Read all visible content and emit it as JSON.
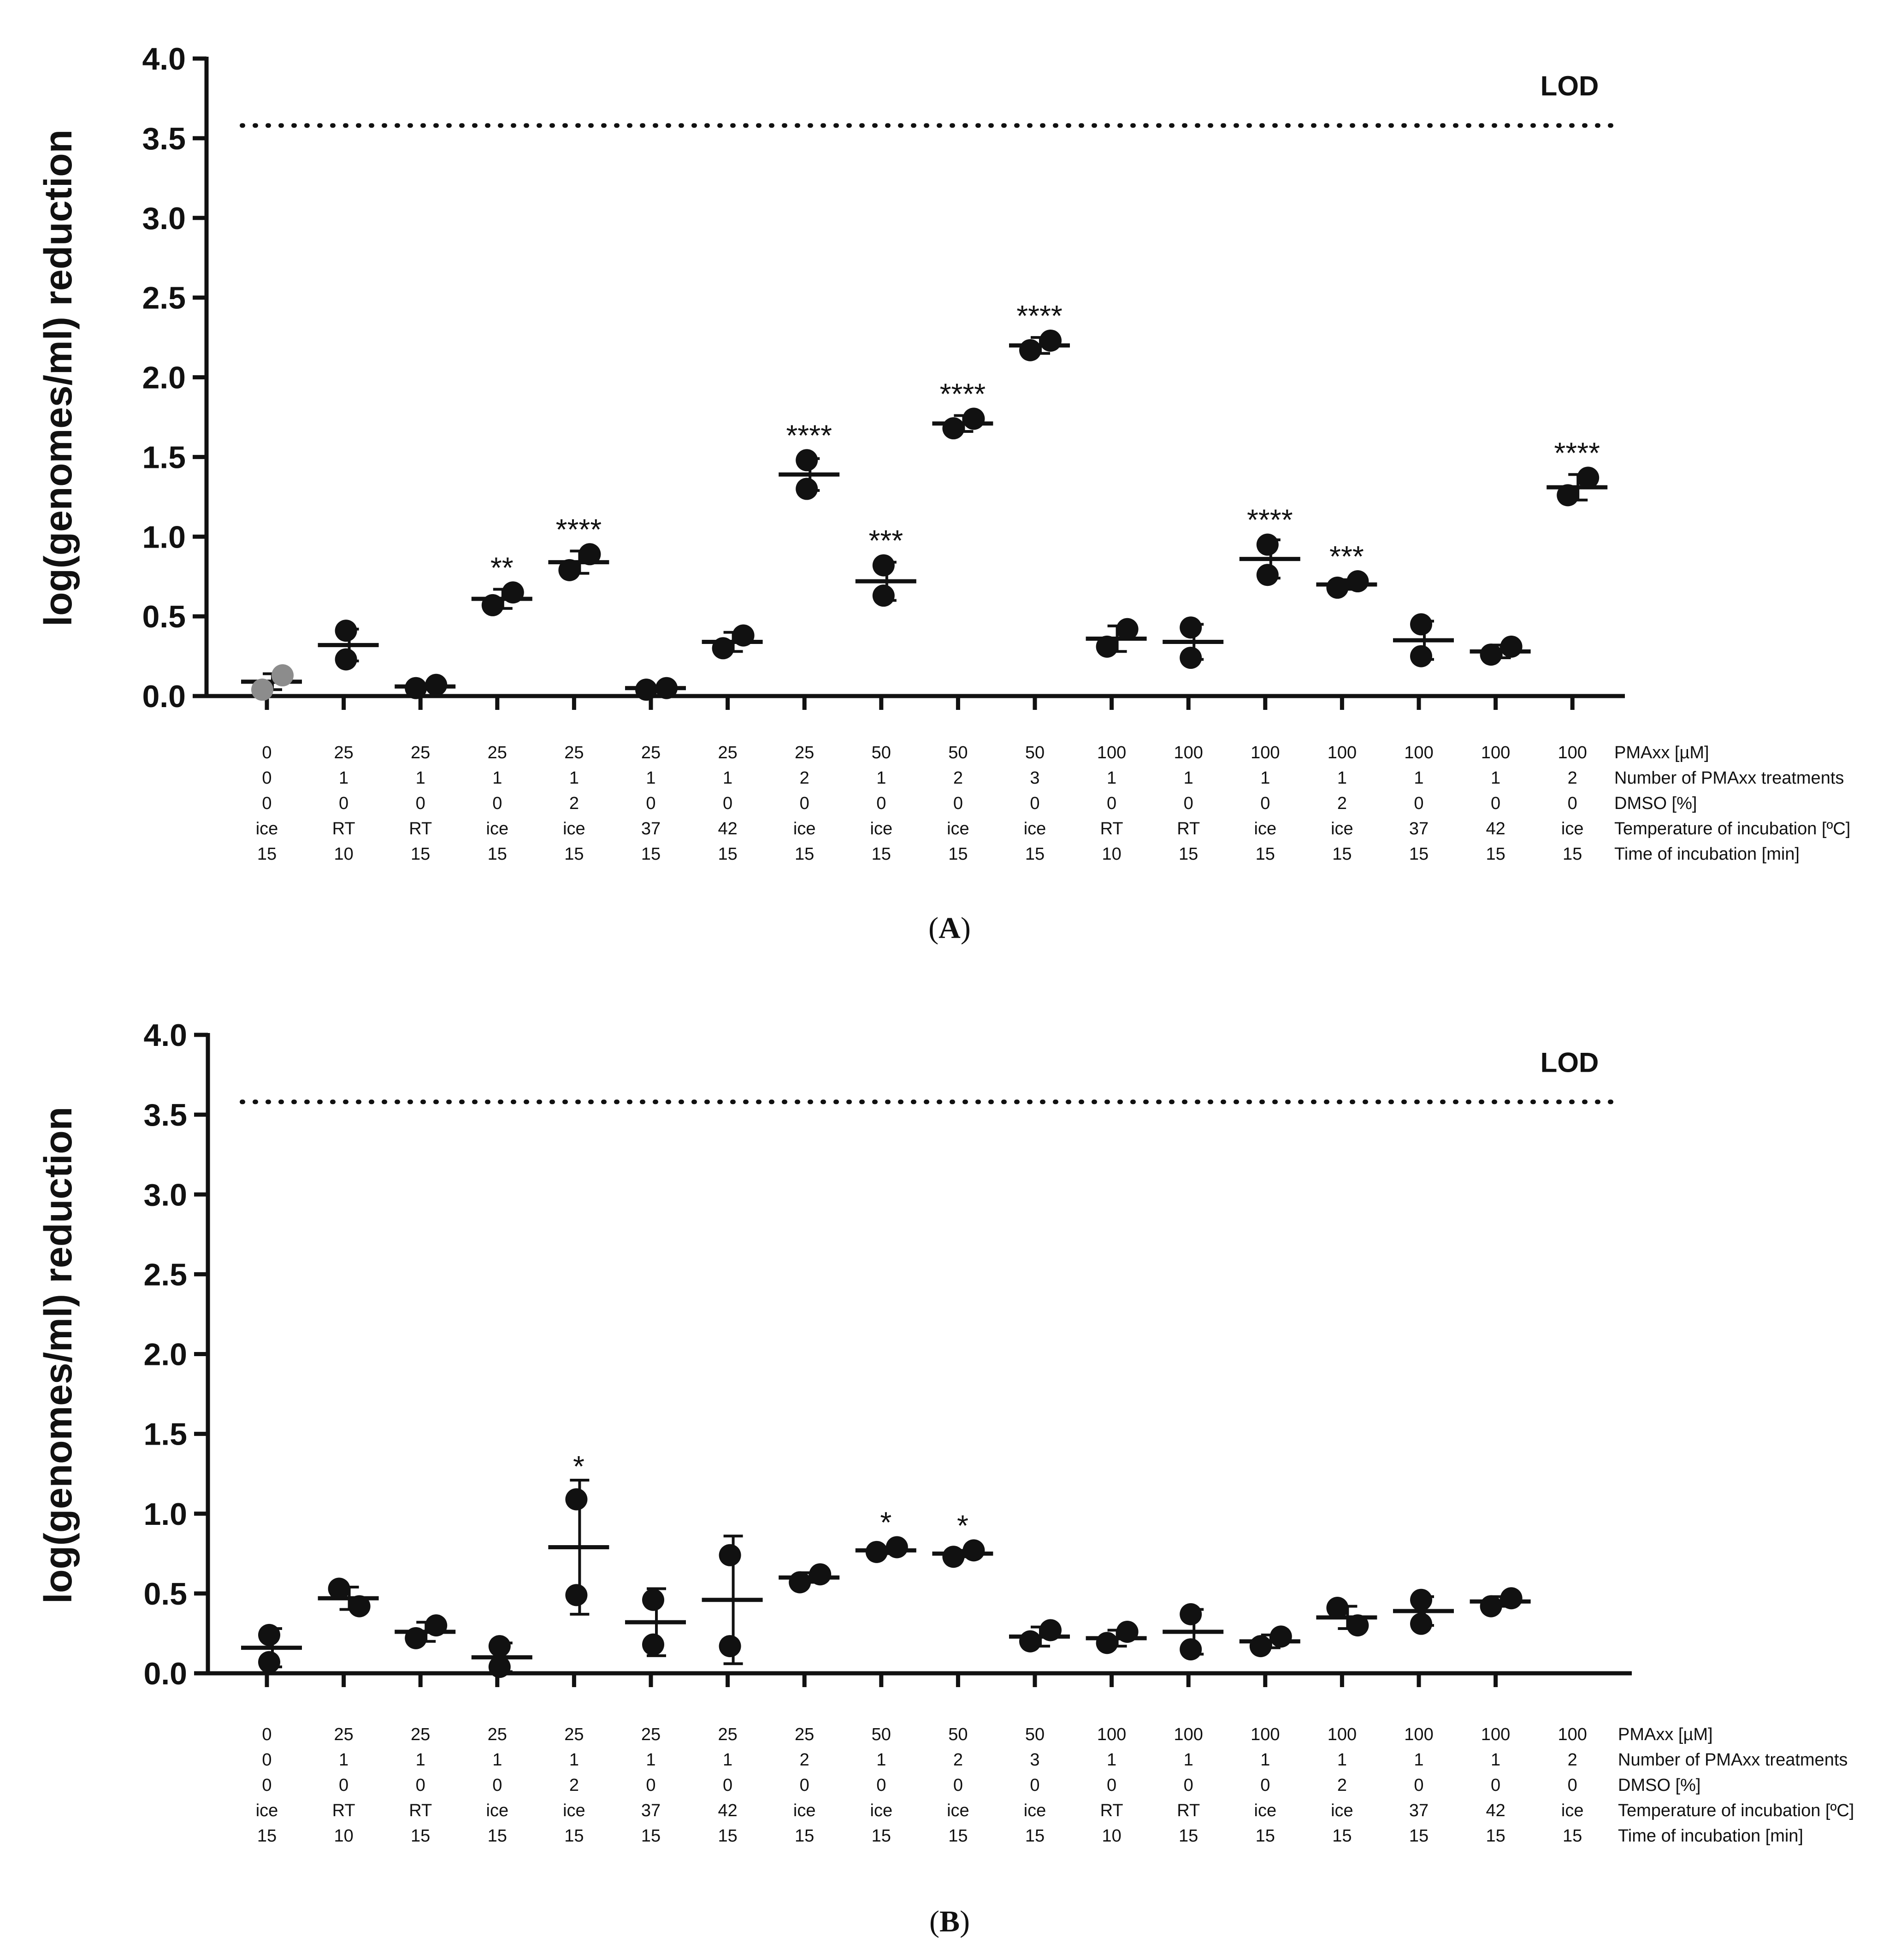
{
  "conditions": {
    "row_labels": [
      "PMAxx [µM]",
      "Number of PMAxx treatments",
      "DMSO [%]",
      "Temperature of incubation [ºC]",
      "Time of incubation [min]"
    ],
    "columns": [
      [
        "0",
        "0",
        "0",
        "ice",
        "15"
      ],
      [
        "25",
        "1",
        "0",
        "RT",
        "10"
      ],
      [
        "25",
        "1",
        "0",
        "RT",
        "15"
      ],
      [
        "25",
        "1",
        "0",
        "ice",
        "15"
      ],
      [
        "25",
        "1",
        "2",
        "ice",
        "15"
      ],
      [
        "25",
        "1",
        "0",
        "37",
        "15"
      ],
      [
        "25",
        "1",
        "0",
        "42",
        "15"
      ],
      [
        "25",
        "2",
        "0",
        "ice",
        "15"
      ],
      [
        "50",
        "1",
        "0",
        "ice",
        "15"
      ],
      [
        "50",
        "2",
        "0",
        "ice",
        "15"
      ],
      [
        "50",
        "3",
        "0",
        "ice",
        "15"
      ],
      [
        "100",
        "1",
        "0",
        "RT",
        "10"
      ],
      [
        "100",
        "1",
        "0",
        "RT",
        "15"
      ],
      [
        "100",
        "1",
        "0",
        "ice",
        "15"
      ],
      [
        "100",
        "1",
        "2",
        "ice",
        "15"
      ],
      [
        "100",
        "1",
        "0",
        "37",
        "15"
      ],
      [
        "100",
        "1",
        "0",
        "42",
        "15"
      ],
      [
        "100",
        "2",
        "0",
        "ice",
        "15"
      ]
    ]
  },
  "colors": {
    "points": "#111111",
    "control_points": "#8c8c8c",
    "axis": "#111111"
  },
  "chart_data": [
    {
      "type": "scatter",
      "panel_label": "A",
      "ylabel": "log(genomes/ml) reduction",
      "ylim": [
        0,
        4
      ],
      "yticks": [
        "0.0",
        "0.5",
        "1.0",
        "1.5",
        "2.0",
        "2.5",
        "3.0",
        "3.5",
        "4.0"
      ],
      "lod_value": 3.58,
      "lod_label": "LOD",
      "groups": [
        {
          "mean": 0.09,
          "sd": 0.05,
          "points": [
            0.04,
            0.13
          ],
          "marker": "control",
          "sig": ""
        },
        {
          "mean": 0.32,
          "sd": 0.1,
          "points": [
            0.41,
            0.23
          ],
          "sig": ""
        },
        {
          "mean": 0.06,
          "sd": 0.01,
          "points": [
            0.05,
            0.07
          ],
          "sig": ""
        },
        {
          "mean": 0.61,
          "sd": 0.06,
          "points": [
            0.57,
            0.65
          ],
          "sig": "**"
        },
        {
          "mean": 0.84,
          "sd": 0.07,
          "points": [
            0.79,
            0.89
          ],
          "sig": "****"
        },
        {
          "mean": 0.05,
          "sd": 0.01,
          "points": [
            0.04,
            0.05
          ],
          "sig": ""
        },
        {
          "mean": 0.34,
          "sd": 0.06,
          "points": [
            0.3,
            0.38
          ],
          "sig": ""
        },
        {
          "mean": 1.39,
          "sd": 0.1,
          "points": [
            1.48,
            1.3
          ],
          "sig": "****"
        },
        {
          "mean": 0.72,
          "sd": 0.12,
          "points": [
            0.82,
            0.63
          ],
          "sig": "***"
        },
        {
          "mean": 1.71,
          "sd": 0.05,
          "points": [
            1.68,
            1.74
          ],
          "sig": "****"
        },
        {
          "mean": 2.2,
          "sd": 0.05,
          "points": [
            2.17,
            2.23
          ],
          "sig": "****"
        },
        {
          "mean": 0.36,
          "sd": 0.08,
          "points": [
            0.31,
            0.42
          ],
          "sig": ""
        },
        {
          "mean": 0.34,
          "sd": 0.11,
          "points": [
            0.43,
            0.24
          ],
          "sig": ""
        },
        {
          "mean": 0.86,
          "sd": 0.12,
          "points": [
            0.95,
            0.76
          ],
          "sig": "****"
        },
        {
          "mean": 0.7,
          "sd": 0.03,
          "points": [
            0.68,
            0.72
          ],
          "sig": "***"
        },
        {
          "mean": 0.35,
          "sd": 0.12,
          "points": [
            0.45,
            0.25
          ],
          "sig": ""
        },
        {
          "mean": 0.28,
          "sd": 0.04,
          "points": [
            0.26,
            0.31
          ],
          "sig": ""
        },
        {
          "mean": 1.31,
          "sd": 0.08,
          "points": [
            1.26,
            1.37
          ],
          "sig": "****"
        }
      ]
    },
    {
      "type": "scatter",
      "panel_label": "B",
      "ylabel": "log(genomes/ml) reduction",
      "ylim": [
        0,
        4
      ],
      "yticks": [
        "0.0",
        "0.5",
        "1.0",
        "1.5",
        "2.0",
        "2.5",
        "3.0",
        "3.5",
        "4.0"
      ],
      "lod_value": 3.58,
      "lod_label": "LOD",
      "groups": [
        {
          "mean": 0.16,
          "sd": 0.12,
          "points": [
            0.24,
            0.07
          ],
          "sig": ""
        },
        {
          "mean": 0.47,
          "sd": 0.07,
          "points": [
            0.53,
            0.42
          ],
          "sig": ""
        },
        {
          "mean": 0.26,
          "sd": 0.06,
          "points": [
            0.22,
            0.3
          ],
          "sig": ""
        },
        {
          "mean": 0.1,
          "sd": 0.09,
          "points": [
            0.17,
            0.04
          ],
          "sig": ""
        },
        {
          "mean": 0.79,
          "sd": 0.42,
          "points": [
            1.09,
            0.49
          ],
          "sig": "*"
        },
        {
          "mean": 0.32,
          "sd": 0.21,
          "points": [
            0.46,
            0.18
          ],
          "sig": ""
        },
        {
          "mean": 0.46,
          "sd": 0.4,
          "points": [
            0.74,
            0.17
          ],
          "sig": ""
        },
        {
          "mean": 0.6,
          "sd": 0.03,
          "points": [
            0.57,
            0.62
          ],
          "sig": ""
        },
        {
          "mean": 0.77,
          "sd": 0.02,
          "points": [
            0.76,
            0.79
          ],
          "sig": "*"
        },
        {
          "mean": 0.75,
          "sd": 0.02,
          "points": [
            0.73,
            0.77
          ],
          "sig": "*"
        },
        {
          "mean": 0.23,
          "sd": 0.06,
          "points": [
            0.2,
            0.27
          ],
          "sig": ""
        },
        {
          "mean": 0.22,
          "sd": 0.05,
          "points": [
            0.19,
            0.26
          ],
          "sig": ""
        },
        {
          "mean": 0.26,
          "sd": 0.14,
          "points": [
            0.37,
            0.15
          ],
          "sig": ""
        },
        {
          "mean": 0.2,
          "sd": 0.04,
          "points": [
            0.17,
            0.23
          ],
          "sig": ""
        },
        {
          "mean": 0.35,
          "sd": 0.07,
          "points": [
            0.41,
            0.3
          ],
          "sig": ""
        },
        {
          "mean": 0.39,
          "sd": 0.09,
          "points": [
            0.46,
            0.31
          ],
          "sig": ""
        },
        {
          "mean": 0.45,
          "sd": 0.03,
          "points": [
            0.42,
            0.47
          ],
          "sig": ""
        }
      ]
    }
  ]
}
